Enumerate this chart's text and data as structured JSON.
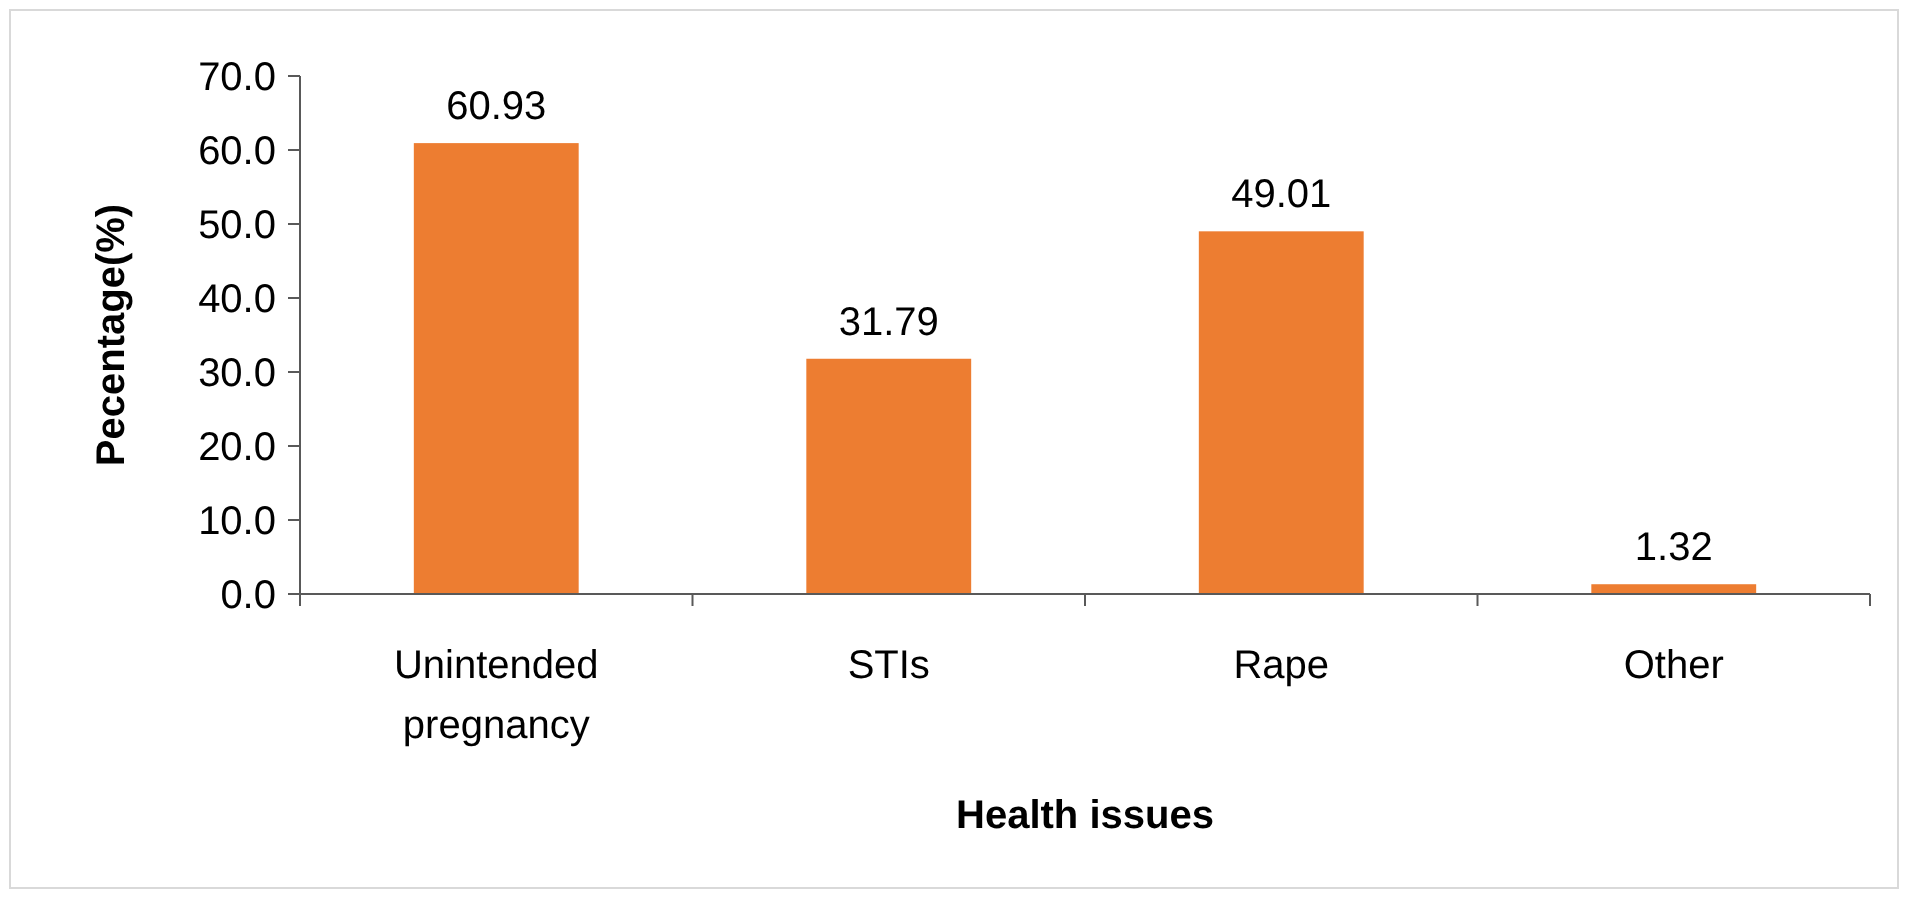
{
  "chart_data": {
    "type": "bar",
    "xlabel": "Health issues",
    "ylabel": "Pecentage(%)",
    "categories": [
      "Unintended pregnancy",
      "STIs",
      "Rape",
      "Other"
    ],
    "values": [
      60.93,
      31.79,
      49.01,
      1.32
    ],
    "color": "#ed7d31",
    "data_labels": true,
    "ylim": [
      0,
      70
    ],
    "yticks": [
      {
        "value": 0,
        "label": "0.0"
      },
      {
        "value": 10,
        "label": "10.0"
      },
      {
        "value": 20,
        "label": "20.0"
      },
      {
        "value": 30,
        "label": "30.0"
      },
      {
        "value": 40,
        "label": "40.0"
      },
      {
        "value": 50,
        "label": "50.0"
      },
      {
        "value": 60,
        "label": "60.0"
      },
      {
        "value": 70,
        "label": "70.0"
      }
    ],
    "grid": false
  }
}
